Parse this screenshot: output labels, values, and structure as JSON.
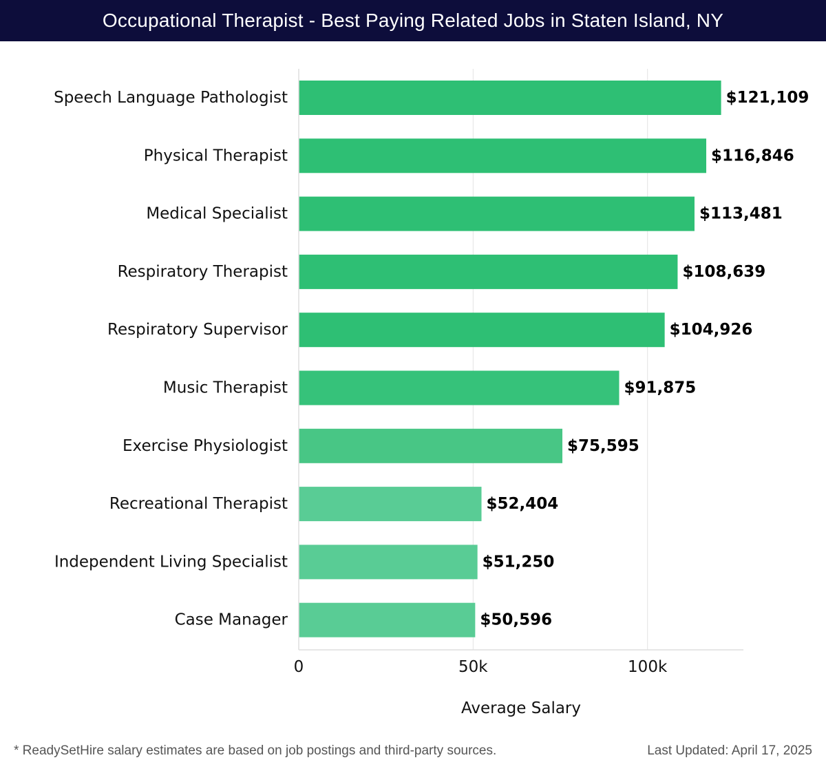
{
  "header": {
    "title": "Occupational Therapist - Best Paying Related Jobs in Staten Island, NY"
  },
  "chart_data": {
    "type": "bar",
    "orientation": "horizontal",
    "categories": [
      "Speech Language Pathologist",
      "Physical Therapist",
      "Medical Specialist",
      "Respiratory Therapist",
      "Respiratory Supervisor",
      "Music Therapist",
      "Exercise Physiologist",
      "Recreational Therapist",
      "Independent Living Specialist",
      "Case Manager"
    ],
    "values": [
      121109,
      116846,
      113481,
      108639,
      104926,
      91875,
      75595,
      52404,
      51250,
      50596
    ],
    "value_labels": [
      "$121,109",
      "$116,846",
      "$113,481",
      "$108,639",
      "$104,926",
      "$91,875",
      "$75,595",
      "$52,404",
      "$51,250",
      "$50,596"
    ],
    "bar_colors": [
      "#2ebf74",
      "#2ebf74",
      "#2ebf74",
      "#2ebf74",
      "#2ebf74",
      "#36c27a",
      "#48c685",
      "#59cc95",
      "#59cc95",
      "#59cc95"
    ],
    "xlabel": "Average Salary",
    "xlim": [
      0,
      127500
    ],
    "xticks": [
      0,
      50000,
      100000
    ],
    "xtick_labels": [
      "0",
      "50k",
      "100k"
    ],
    "grid": true
  },
  "footer": {
    "note": "* ReadySetHire salary estimates are based on job postings and third-party sources.",
    "updated": "Last Updated: April 17, 2025"
  }
}
